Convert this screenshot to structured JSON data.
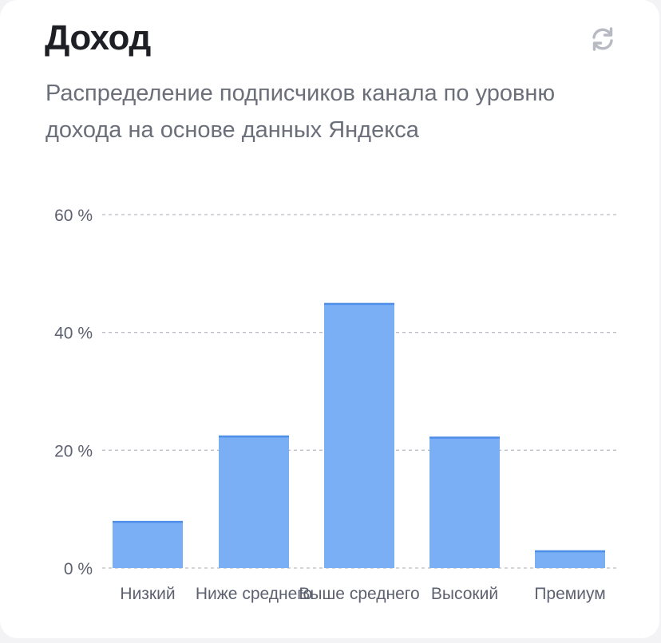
{
  "card": {
    "title": "Доход",
    "subtitle": "Распределение подписчиков канала по уровню дохода на основе данных Яндекса",
    "refresh_icon": "refresh-icon"
  },
  "colors": {
    "bar": "#7aaff5",
    "bar_top": "#4f8fe8",
    "grid": "#b9bcc4",
    "tick_text": "#5d6170",
    "title": "#1d1f24",
    "subtitle": "#6b6f7a",
    "icon": "#b7bac2"
  },
  "chart_data": {
    "type": "bar",
    "categories": [
      "Низкий",
      "Ниже среднего",
      "Выше среднего",
      "Высокий",
      "Премиум"
    ],
    "values": [
      8,
      22.5,
      45,
      22.3,
      3
    ],
    "ylim": [
      0,
      60
    ],
    "yticks": [
      0,
      20,
      40,
      60
    ],
    "ytick_labels": [
      "0 %",
      "20 %",
      "40 %",
      "60 %"
    ],
    "grid": true,
    "xlabel": "",
    "ylabel": ""
  }
}
